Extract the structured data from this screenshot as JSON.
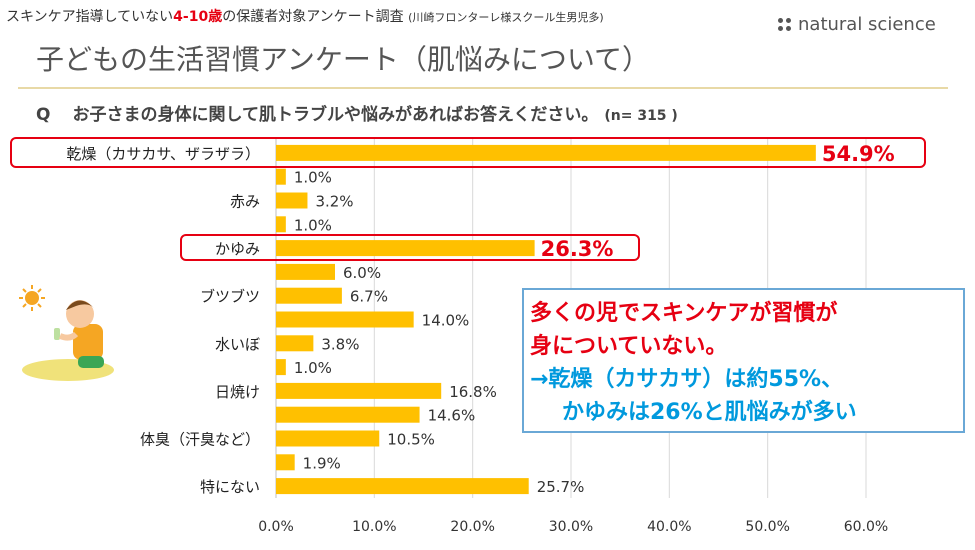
{
  "header": {
    "caption_pre": "スキンケア指導していない",
    "caption_age": "4-10歳",
    "caption_post": "の保護者対象アンケート調査",
    "caption_note": "(川崎フロンターレ様スクール生男児多)",
    "brand": "natural science",
    "title": "子どもの生活習慣アンケート（肌悩みについて）",
    "question_label": "Q",
    "question": "お子さまの身体に関して肌トラブルや悩みがあればお答えください。",
    "sample": "(n= 315 )"
  },
  "callout": {
    "line1": "多くの児でスキンケアが習慣が",
    "line2": "身についていない。",
    "line3": "→乾燥（カサカサ）は約55%、",
    "line4": "かゆみは26%と肌悩みが多い"
  },
  "colors": {
    "bar": "#ffc000",
    "highlight": "#e60012",
    "callout_border": "#6aa8d6",
    "callout_blue": "#0099dd"
  },
  "chart_data": {
    "type": "bar",
    "orientation": "horizontal",
    "title": "お子さまの身体に関して肌トラブルや悩みがあればお答えください。",
    "categories": [
      "乾燥（カサカサ、ザラザラ）",
      "",
      "赤み",
      "",
      "かゆみ",
      "",
      "ブツブツ",
      "",
      "水いぼ",
      "",
      "日焼け",
      "",
      "体臭（汗臭など）",
      "",
      "特にない"
    ],
    "values": [
      54.9,
      1.0,
      3.2,
      1.0,
      26.3,
      6.0,
      6.7,
      14.0,
      3.8,
      1.0,
      16.8,
      14.6,
      10.5,
      1.9,
      25.7
    ],
    "value_labels": [
      "54.9%",
      "1.0%",
      "3.2%",
      "1.0%",
      "26.3%",
      "6.0%",
      "6.7%",
      "14.0%",
      "3.8%",
      "1.0%",
      "16.8%",
      "14.6%",
      "10.5%",
      "1.9%",
      "25.7%"
    ],
    "highlighted": [
      0,
      4
    ],
    "xlim": [
      0,
      60
    ],
    "xticks": [
      "0.0%",
      "10.0%",
      "20.0%",
      "30.0%",
      "40.0%",
      "50.0%",
      "60.0%"
    ],
    "grid": true,
    "xlabel": "",
    "ylabel": ""
  }
}
